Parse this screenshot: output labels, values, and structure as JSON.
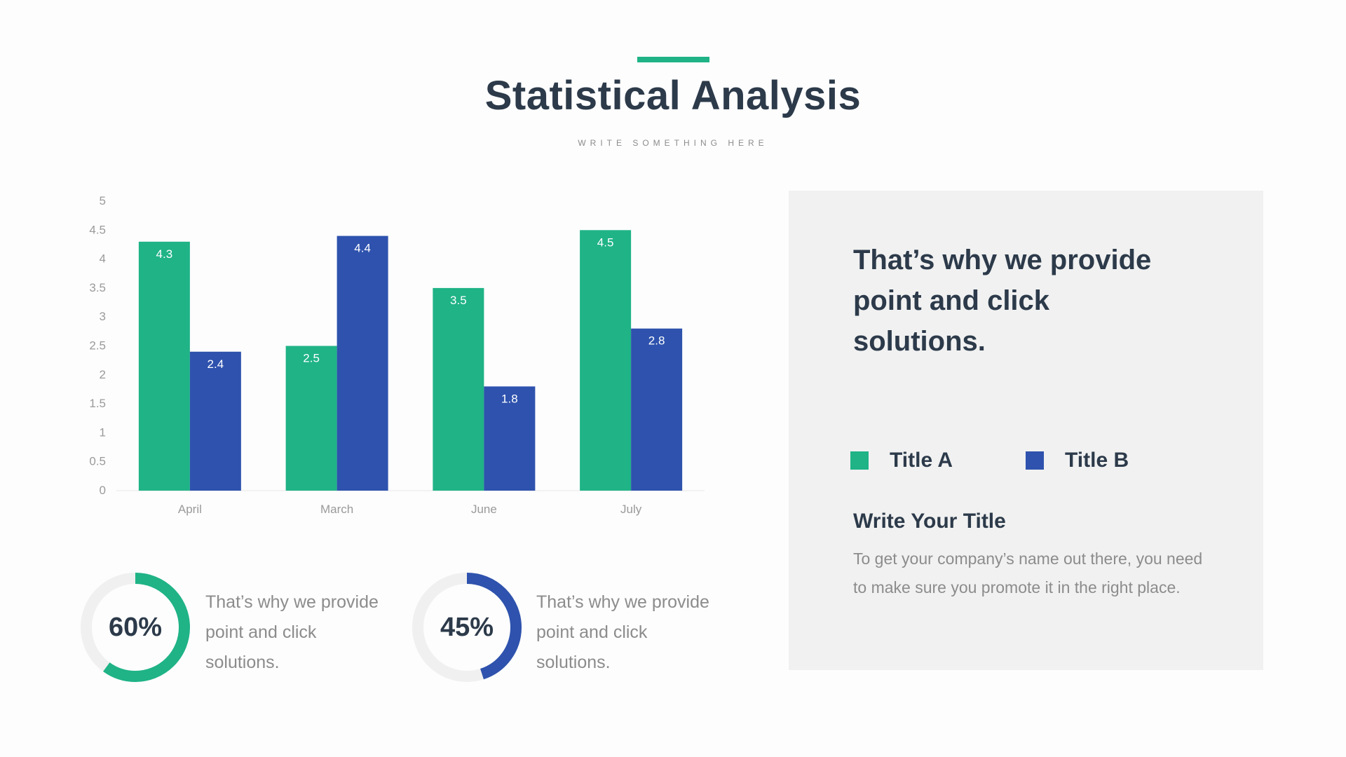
{
  "header": {
    "title": "Statistical Analysis",
    "subtitle": "WRITE SOMETHING HERE"
  },
  "colors": {
    "accent": "#1fb386",
    "series_a": "#1fb386",
    "series_b": "#2e52ad",
    "heading": "#2c3a4a",
    "muted": "#8c8c8c",
    "panel_bg": "#f1f1f1",
    "donut_track": "#f0f0f0"
  },
  "chart_data": {
    "type": "bar",
    "title": "",
    "xlabel": "",
    "ylabel": "",
    "categories": [
      "April",
      "March",
      "June",
      "July"
    ],
    "series": [
      {
        "name": "Title A",
        "values": [
          4.3,
          2.5,
          3.5,
          4.5
        ],
        "color": "#1fb386"
      },
      {
        "name": "Title B",
        "values": [
          2.4,
          4.4,
          1.8,
          2.8
        ],
        "color": "#2e52ad"
      }
    ],
    "ylim": [
      0,
      5
    ],
    "yticks": [
      "0",
      "0.5",
      "1",
      "1.5",
      "2",
      "2.5",
      "3",
      "3.5",
      "4",
      "4.5",
      "5"
    ],
    "data_labels": true,
    "grid": false,
    "legend": "right-panel"
  },
  "panel": {
    "headline": "That’s why we provide point and click solutions.",
    "legend": [
      {
        "label": "Title A",
        "color": "#1fb386"
      },
      {
        "label": "Title B",
        "color": "#2e52ad"
      }
    ],
    "subtitle": "Write Your Title",
    "body": "To get your company’s name out there, you need to make sure you promote it in the right place."
  },
  "stats": [
    {
      "value": "60%",
      "fraction": 0.6,
      "color": "#1fb386",
      "text": "That’s why we provide point and click solutions."
    },
    {
      "value": "45%",
      "fraction": 0.45,
      "color": "#2e52ad",
      "text": "That’s why we provide point and click solutions."
    }
  ]
}
